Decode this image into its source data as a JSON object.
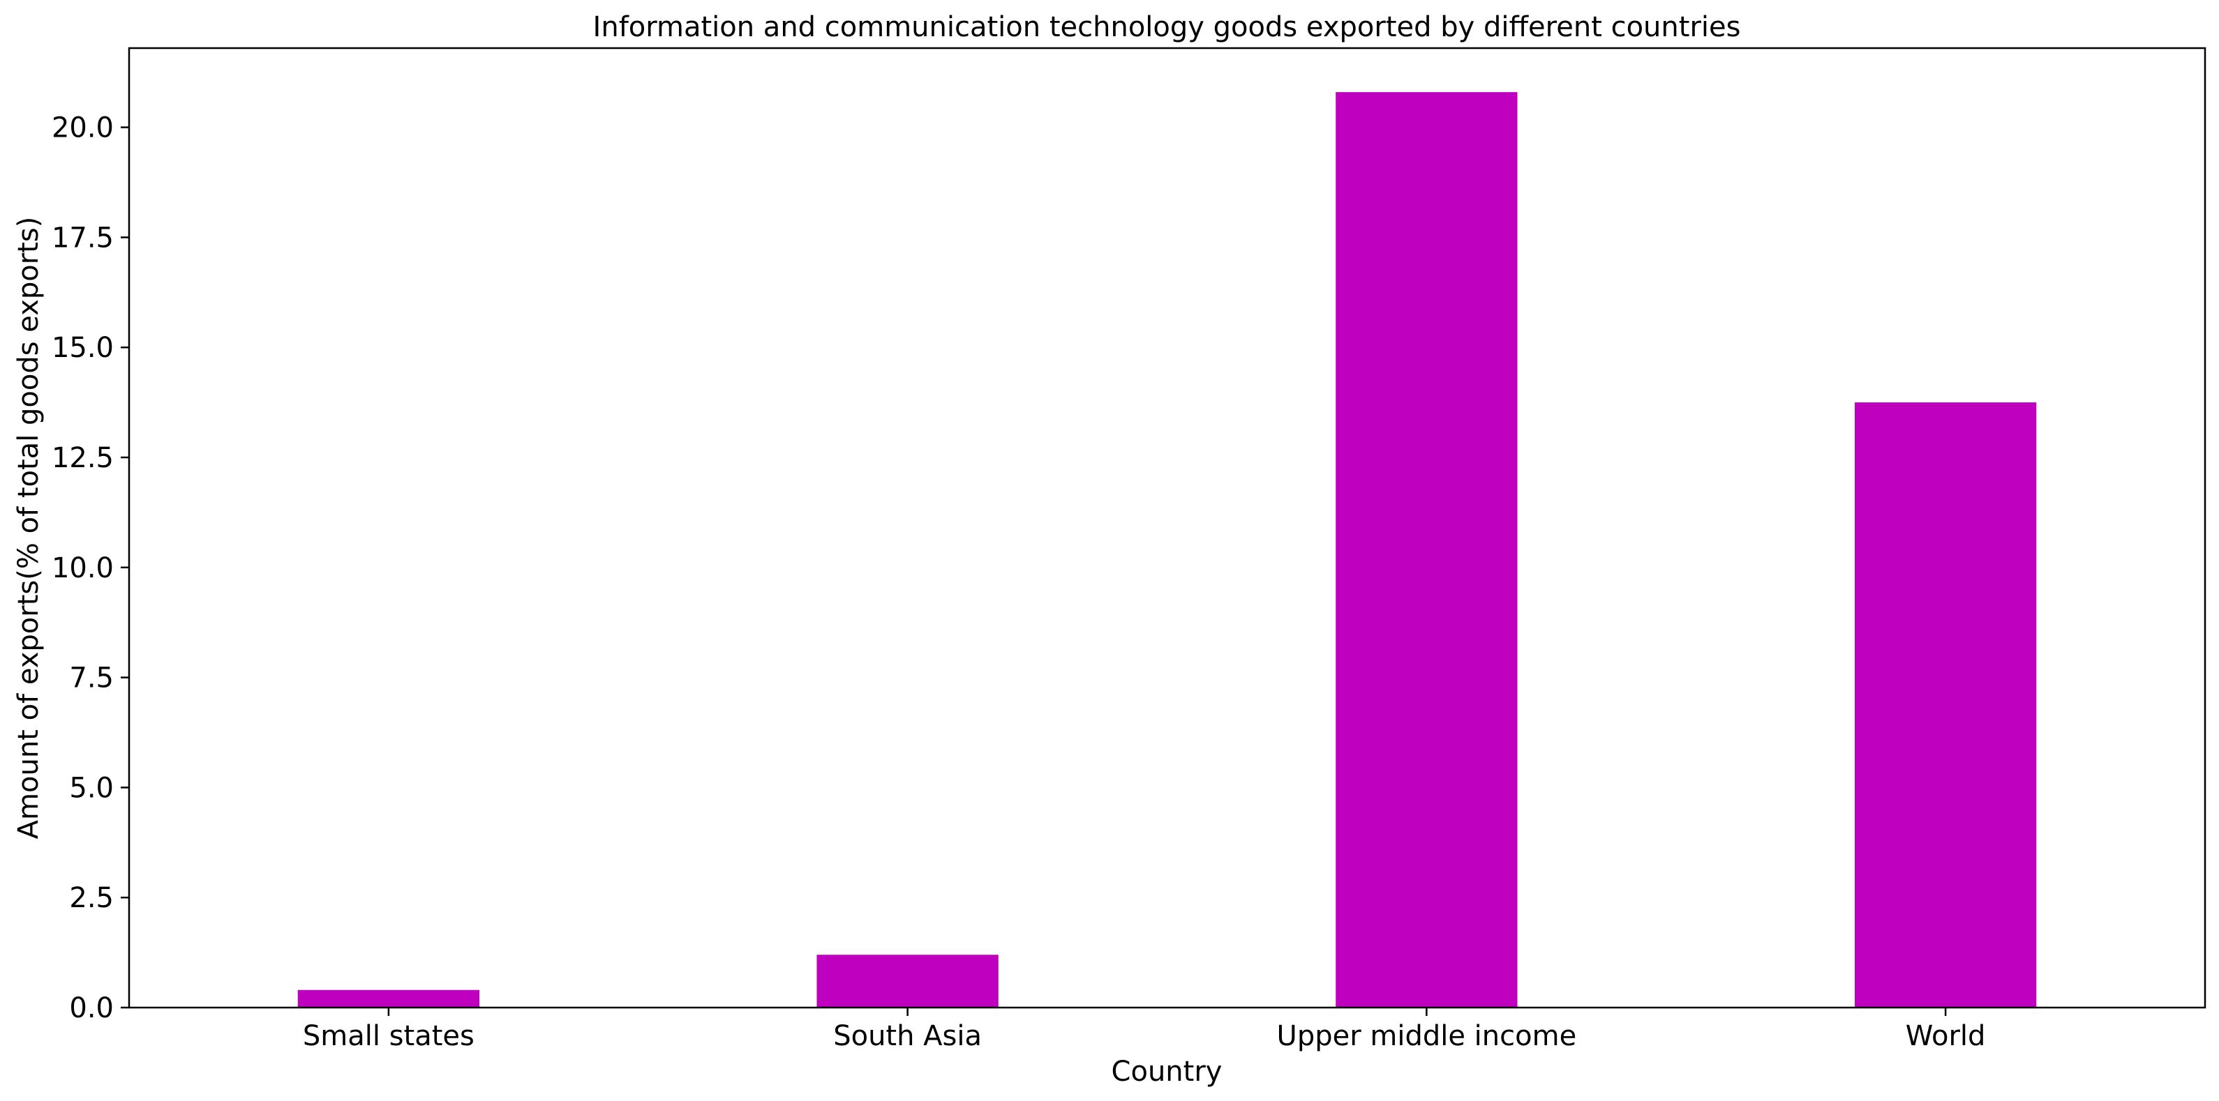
{
  "chart_data": {
    "type": "bar",
    "title": "Information and communication technology goods exported by different countries",
    "xlabel": "Country",
    "ylabel": "Amount of exports(% of total goods exports)",
    "categories": [
      "Small states",
      "South Asia",
      "Upper middle income",
      "World"
    ],
    "values": [
      0.4,
      1.2,
      20.8,
      13.75
    ],
    "ylim": [
      0,
      21.8
    ],
    "yticks": [
      0.0,
      2.5,
      5.0,
      7.5,
      10.0,
      12.5,
      15.0,
      17.5,
      20.0
    ],
    "ytick_labels": [
      "0.0",
      "2.5",
      "5.0",
      "7.5",
      "10.0",
      "12.5",
      "15.0",
      "17.5",
      "20.0"
    ],
    "bar_color": "#bf00bf",
    "grid": false,
    "legend": "none"
  }
}
